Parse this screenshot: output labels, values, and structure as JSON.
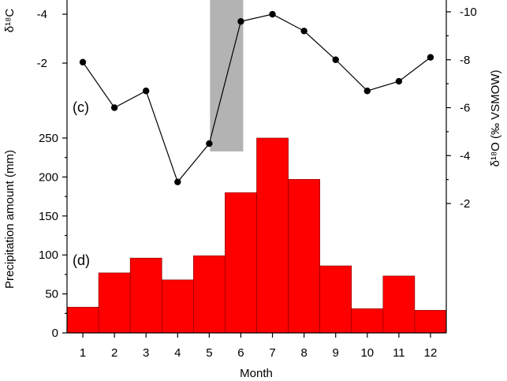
{
  "chart_data": [
    {
      "type": "line",
      "panel_label": "(c)",
      "x": [
        1,
        2,
        3,
        4,
        5,
        6,
        7,
        8,
        9,
        10,
        11,
        12
      ],
      "y_right_permil_vsmow": [
        -7.9,
        -6.0,
        -6.7,
        -2.9,
        -4.5,
        -9.6,
        -9.9,
        -9.2,
        -8.0,
        -6.7,
        -7.1,
        -8.1
      ],
      "left_axis": {
        "label_visible": "δ¹⁸C",
        "ticks": [
          "-4",
          "-2"
        ]
      },
      "right_axis": {
        "label": "δ¹⁸O (‰ VSMOW)",
        "ticks": [
          "-10",
          "-8",
          "-6",
          "-4",
          "-2"
        ],
        "ylim": [
          -1.7,
          -10.9
        ]
      },
      "shaded_band": {
        "x_range": [
          5,
          6
        ],
        "color": "#b3b3b3"
      }
    },
    {
      "type": "bar",
      "panel_label": "(d)",
      "categories": [
        "1",
        "2",
        "3",
        "4",
        "5",
        "6",
        "7",
        "8",
        "9",
        "10",
        "11",
        "12"
      ],
      "values": [
        33,
        77,
        96,
        68,
        99,
        180,
        250,
        197,
        86,
        31,
        73,
        29
      ],
      "ylabel": "Precipitation amount (mm)",
      "xlabel": "Month",
      "y_ticks": [
        "0",
        "50",
        "100",
        "150",
        "200",
        "250"
      ],
      "ylim": [
        0,
        260
      ],
      "bar_color": "#ff0000"
    }
  ]
}
